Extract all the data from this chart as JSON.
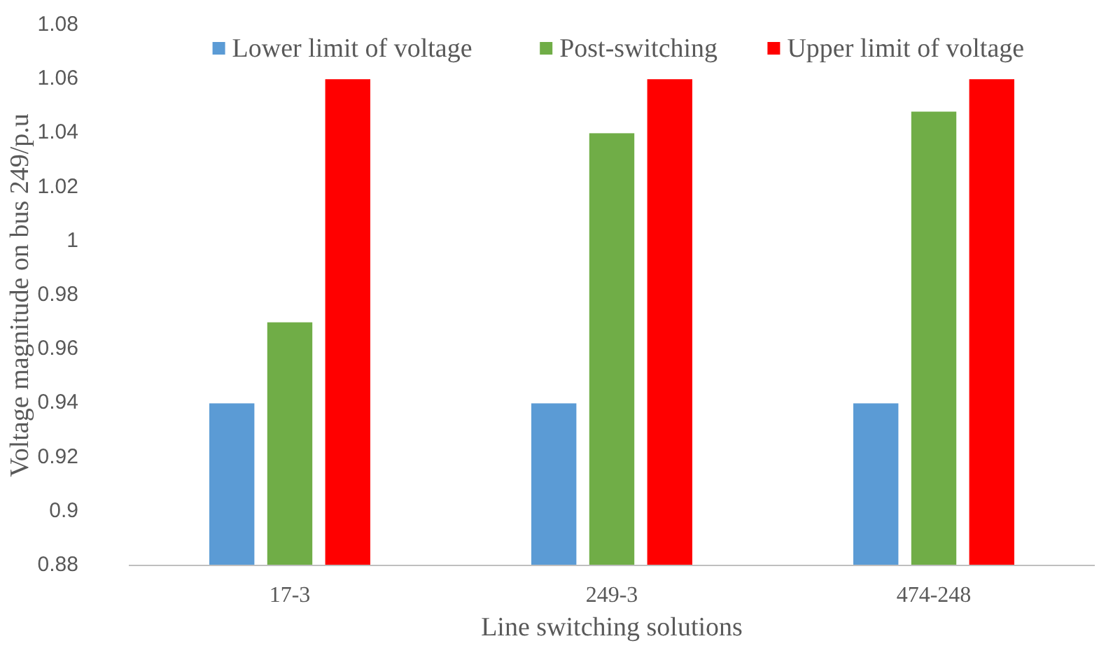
{
  "chart_data": {
    "type": "bar",
    "xlabel": "Line switching solutions",
    "ylabel": "Voltage magnitude on bus 249/p.u",
    "categories": [
      "17-3",
      "249-3",
      "474-248"
    ],
    "series": [
      {
        "name": "Lower limit of voltage",
        "color": "#5b9bd5",
        "values": [
          0.94,
          0.94,
          0.94
        ]
      },
      {
        "name": "Post-switching",
        "color": "#70ad47",
        "values": [
          0.97,
          1.04,
          1.048
        ]
      },
      {
        "name": "Upper limit of voltage",
        "color": "#ff0000",
        "values": [
          1.06,
          1.06,
          1.06
        ]
      }
    ],
    "ylim": [
      0.88,
      1.08
    ],
    "yticks": [
      0.88,
      0.9,
      0.92,
      0.94,
      0.96,
      0.98,
      1,
      1.02,
      1.04,
      1.06,
      1.08
    ],
    "grid": false,
    "legend": "top right"
  }
}
